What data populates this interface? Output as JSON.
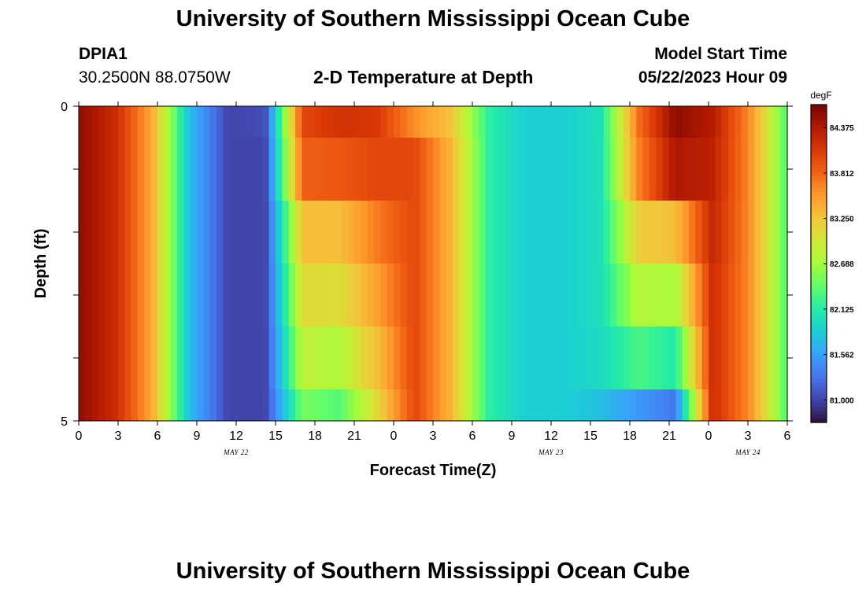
{
  "header": {
    "title": "University of Southern Mississippi Ocean Cube",
    "station": "DPIA1",
    "location": "30.2500N  88.0750W",
    "plot_title": "2-D Temperature at Depth",
    "model_label": "Model Start Time",
    "model_time": "05/22/2023 Hour 09"
  },
  "footer": {
    "title": "University of Southern Mississippi Ocean Cube"
  },
  "chart_data": {
    "type": "heatmap",
    "title": "2-D Temperature at Depth",
    "xlabel": "Forecast Time(Z)",
    "ylabel": "Depth (ft)",
    "x_tick_labels": [
      "0",
      "3",
      "6",
      "9",
      "12",
      "15",
      "18",
      "21",
      "0",
      "3",
      "6",
      "9",
      "12",
      "15",
      "18",
      "21",
      "0",
      "3",
      "6"
    ],
    "date_labels": [
      {
        "text": "MAY 22",
        "at_tick": 4
      },
      {
        "text": "MAY 23",
        "at_tick": 12
      },
      {
        "text": "MAY 24",
        "at_tick": 17
      }
    ],
    "y_tick_labels": [
      "0",
      "5"
    ],
    "ylim": [
      0,
      5
    ],
    "colorbar": {
      "unit": "degF",
      "tick_labels": [
        "81.000",
        "81.562",
        "82.125",
        "82.688",
        "83.250",
        "83.812",
        "84.375"
      ],
      "range": [
        80.72,
        84.66
      ],
      "colors": [
        "#30123b",
        "#4145ab",
        "#4675ed",
        "#39a2fc",
        "#1bcfd4",
        "#24eca6",
        "#61fc6c",
        "#a4fc3b",
        "#d1e834",
        "#f3c63a",
        "#fe9b2d",
        "#f36315",
        "#d93806",
        "#b11901",
        "#7a0402"
      ]
    },
    "time_hours": [
      0,
      3,
      6,
      9,
      12,
      15,
      18,
      21,
      24,
      27,
      30,
      33,
      36,
      39,
      42,
      45,
      48,
      51,
      54
    ],
    "layers": [
      {
        "depth_ft": "0-0.5",
        "values": [
          84.55,
          84.2,
          83.4,
          81.7,
          81.0,
          81.05,
          84.0,
          84.15,
          84.1,
          83.6,
          83.25,
          82.15,
          81.85,
          81.85,
          82.0,
          83.75,
          84.55,
          84.35,
          83.6,
          82.3
        ]
      },
      {
        "depth_ft": "0.5-1.5",
        "values": [
          84.55,
          84.2,
          83.4,
          81.7,
          81.0,
          81.0,
          83.85,
          83.9,
          84.0,
          84.0,
          83.35,
          82.15,
          81.85,
          81.85,
          82.0,
          83.65,
          84.4,
          84.3,
          83.6,
          82.3
        ]
      },
      {
        "depth_ft": "1.5-2.5",
        "values": [
          84.55,
          84.2,
          83.4,
          81.7,
          81.0,
          81.0,
          83.3,
          83.3,
          83.7,
          84.0,
          83.35,
          82.15,
          81.85,
          81.85,
          82.0,
          83.2,
          83.3,
          84.25,
          83.6,
          82.3
        ]
      },
      {
        "depth_ft": "2.5-3.5",
        "values": [
          84.55,
          84.2,
          83.4,
          81.7,
          81.0,
          81.0,
          83.1,
          83.05,
          83.5,
          84.0,
          83.35,
          82.15,
          81.85,
          81.85,
          82.0,
          82.8,
          82.7,
          84.2,
          83.6,
          82.3
        ]
      },
      {
        "depth_ft": "3.5-4.5",
        "values": [
          84.55,
          84.2,
          83.4,
          81.7,
          81.0,
          81.0,
          82.85,
          82.75,
          83.3,
          84.0,
          83.35,
          82.15,
          81.85,
          81.85,
          81.95,
          82.3,
          82.1,
          84.2,
          83.6,
          82.3
        ]
      },
      {
        "depth_ft": "4.5-5",
        "values": [
          84.55,
          84.2,
          83.4,
          81.7,
          81.0,
          81.0,
          82.5,
          82.35,
          83.1,
          84.0,
          83.35,
          82.15,
          81.85,
          81.85,
          81.75,
          81.5,
          81.3,
          84.2,
          83.6,
          82.3
        ]
      }
    ]
  }
}
